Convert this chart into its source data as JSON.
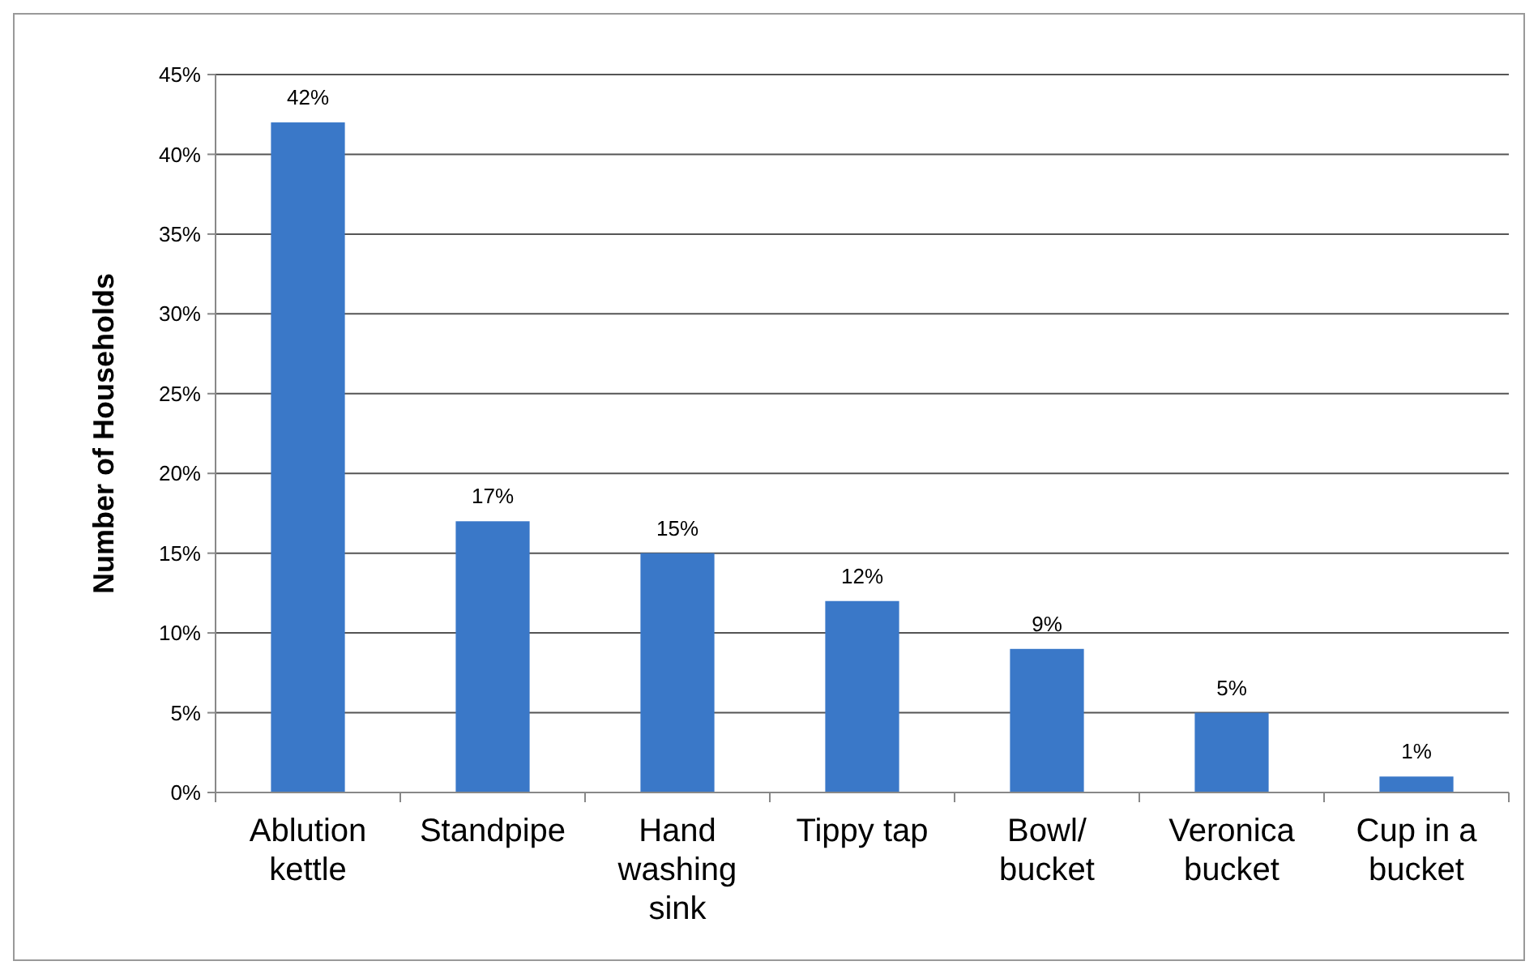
{
  "chart_data": {
    "type": "bar",
    "ylabel": "Number of Households",
    "categories": [
      "Ablution kettle",
      "Standpipe",
      "Hand washing sink",
      "Tippy tap",
      "Bowl/ bucket",
      "Veronica bucket",
      "Cup in a bucket"
    ],
    "values": [
      42,
      17,
      15,
      12,
      9,
      5,
      1
    ],
    "value_labels": [
      "42%",
      "17%",
      "15%",
      "12%",
      "9%",
      "5%",
      "1%"
    ],
    "color": "#3a78c8",
    "ylim": [
      0,
      45
    ],
    "yticks": [
      {
        "value": 0,
        "label": "0%"
      },
      {
        "value": 5,
        "label": "5%"
      },
      {
        "value": 10,
        "label": "10%"
      },
      {
        "value": 15,
        "label": "15%"
      },
      {
        "value": 20,
        "label": "20%"
      },
      {
        "value": 25,
        "label": "25%"
      },
      {
        "value": 30,
        "label": "30%"
      },
      {
        "value": 35,
        "label": "35%"
      },
      {
        "value": 40,
        "label": "40%"
      },
      {
        "value": 45,
        "label": "45%"
      }
    ],
    "grid": "y"
  }
}
